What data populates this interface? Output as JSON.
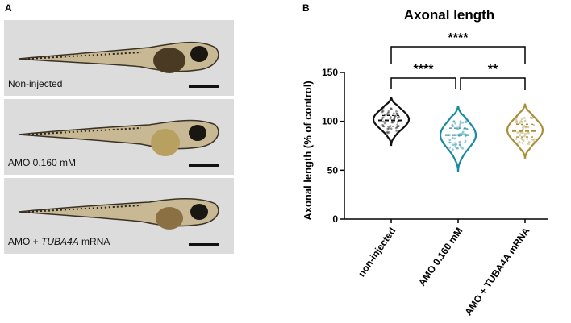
{
  "panel_a": {
    "letter": "A",
    "photos": [
      {
        "label": "Non-injected",
        "label_gene": "",
        "label_suffix": ""
      },
      {
        "label": "AMO 0.160 mM",
        "label_gene": "",
        "label_suffix": ""
      },
      {
        "label": "AMO + ",
        "label_gene": "TUBA4A",
        "label_suffix": " mRNA"
      }
    ]
  },
  "panel_b": {
    "letter": "B"
  },
  "chart_data": {
    "type": "violin",
    "title": "Axonal length",
    "ylabel": "Axonal length (% of control)",
    "xlabel": "",
    "ylim": [
      0,
      150
    ],
    "yticks": [
      0,
      50,
      100,
      150
    ],
    "categories": [
      "non-injected",
      "AMO 0.160 mM",
      "AMO + TUBA4A mRNA"
    ],
    "series": [
      {
        "category": "non-injected",
        "color": "#111111",
        "median": 101,
        "q1": 95,
        "q3": 106,
        "min": 75,
        "max": 125,
        "mode": 102
      },
      {
        "category": "AMO 0.160 mM",
        "color": "#1a8aa0",
        "median": 86,
        "q1": 78,
        "q3": 93,
        "min": 48,
        "max": 116,
        "mode": 86
      },
      {
        "category": "AMO + TUBA4A mRNA",
        "color": "#a8903a",
        "median": 90,
        "q1": 84,
        "q3": 97,
        "min": 62,
        "max": 118,
        "mode": 91
      }
    ],
    "significance": [
      {
        "from": 0,
        "to": 2,
        "label": "****"
      },
      {
        "from": 0,
        "to": 1,
        "label": "****"
      },
      {
        "from": 1,
        "to": 2,
        "label": "**"
      }
    ],
    "grid": false
  }
}
